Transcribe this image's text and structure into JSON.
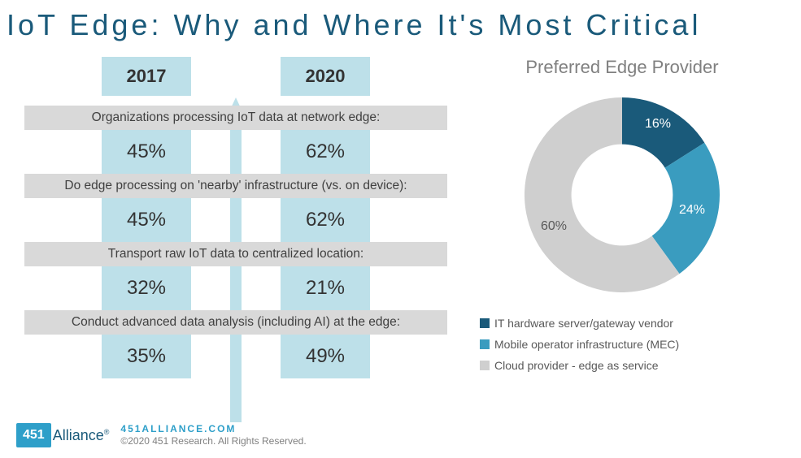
{
  "title": "IoT Edge: Why and Where It's Most Critical",
  "comparison": {
    "year_a": "2017",
    "year_b": "2020",
    "header_bg": "#bde0e9",
    "value_bg": "#bde0e9",
    "label_bg": "#d9d9d9",
    "arrow_color": "#bde0e9",
    "rows": [
      {
        "label": "Organizations processing IoT data at network edge:",
        "a": "45%",
        "b": "62%"
      },
      {
        "label": "Do edge processing on 'nearby' infrastructure (vs. on device):",
        "a": "45%",
        "b": "62%"
      },
      {
        "label": "Transport raw IoT data to centralized location:",
        "a": "32%",
        "b": "21%"
      },
      {
        "label": "Conduct advanced data analysis (including AI) at the edge:",
        "a": "35%",
        "b": "49%"
      }
    ]
  },
  "donut": {
    "title": "Preferred Edge Provider",
    "type": "donut",
    "inner_radius_pct": 52,
    "background_color": "#ffffff",
    "label_color": "#ffffff",
    "label_fontsize": 16,
    "slices": [
      {
        "label": "IT hardware server/gateway vendor",
        "value": 16,
        "color": "#1a5a7a",
        "display": "16%"
      },
      {
        "label": "Mobile operator infrastructure (MEC)",
        "value": 24,
        "color": "#3a9cbf",
        "display": "24%"
      },
      {
        "label": "Cloud provider - edge as service",
        "value": 60,
        "color": "#cfcfcf",
        "display": "60%"
      }
    ]
  },
  "footer": {
    "logo_num": "451",
    "logo_text": "Alliance",
    "logo_reg": "®",
    "url": "451ALLIANCE.COM",
    "copyright": "©2020 451 Research. All Rights Reserved."
  },
  "colors": {
    "title": "#1a5a7a",
    "brand_blue": "#2e9fc9"
  }
}
